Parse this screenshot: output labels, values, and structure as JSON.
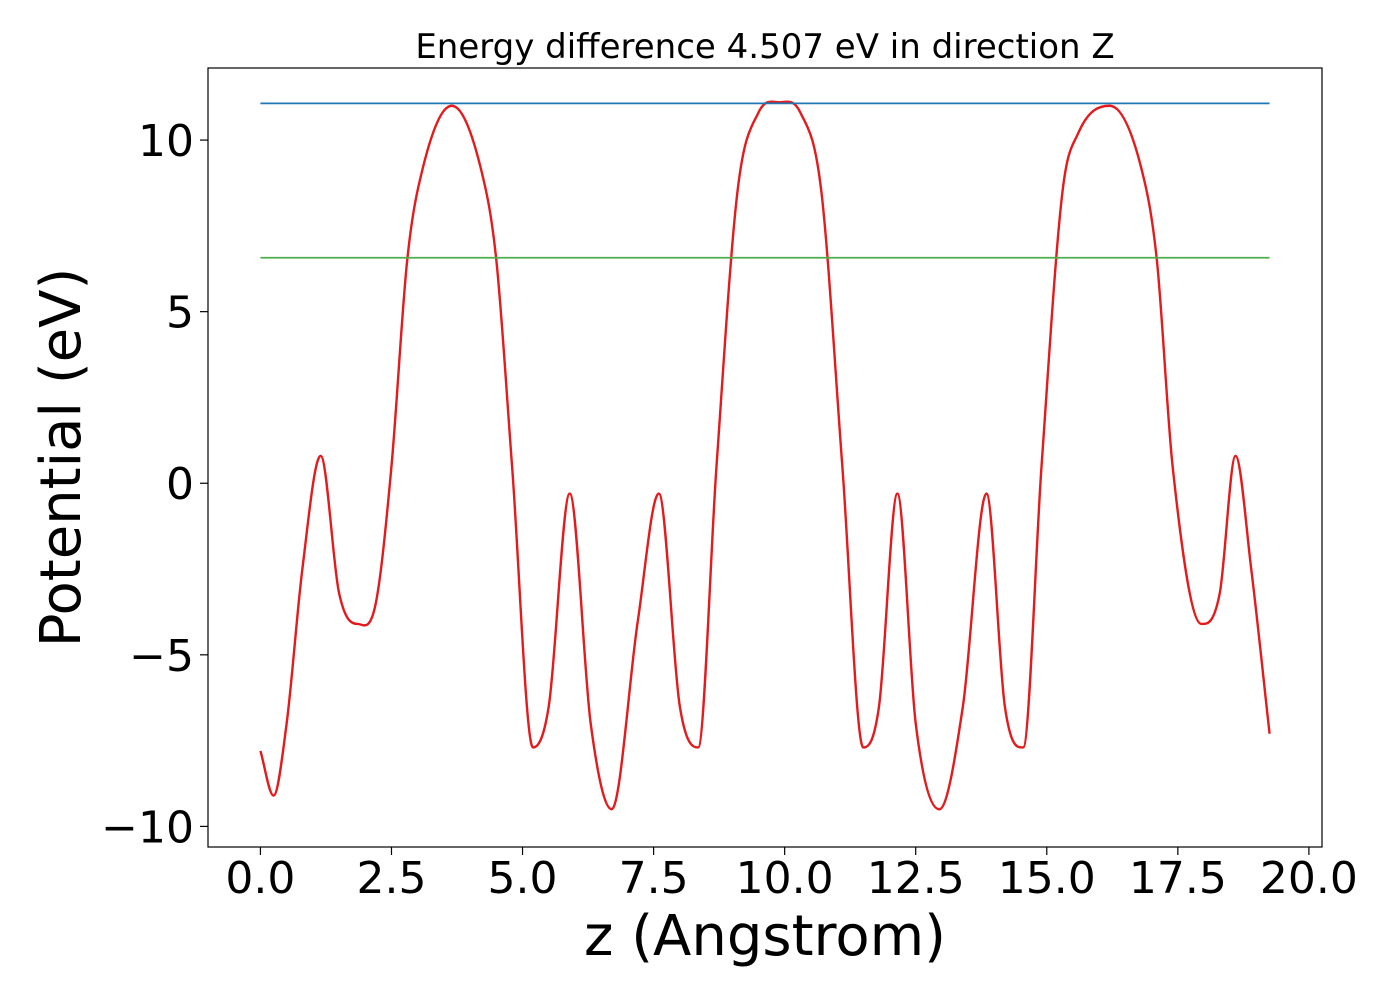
{
  "chart_data": {
    "type": "line",
    "title": "Energy difference 4.507 eV in direction Z",
    "xlabel": "z (Angstrom)",
    "ylabel": "Potential (eV)",
    "xlim": [
      -1.0,
      20.25
    ],
    "ylim": [
      -10.6,
      12.1
    ],
    "xticks": [
      {
        "value": 0.0,
        "label": "0.0"
      },
      {
        "value": 2.5,
        "label": "2.5"
      },
      {
        "value": 5.0,
        "label": "5.0"
      },
      {
        "value": 7.5,
        "label": "7.5"
      },
      {
        "value": 10.0,
        "label": "10.0"
      },
      {
        "value": 12.5,
        "label": "12.5"
      },
      {
        "value": 15.0,
        "label": "15.0"
      },
      {
        "value": 17.5,
        "label": "17.5"
      },
      {
        "value": 20.0,
        "label": "20.0"
      }
    ],
    "yticks": [
      {
        "value": 10,
        "label": "10"
      },
      {
        "value": 5,
        "label": "5"
      },
      {
        "value": 0,
        "label": "0"
      },
      {
        "value": -5,
        "label": "−5"
      },
      {
        "value": -10,
        "label": "−10"
      }
    ],
    "grid": false,
    "series": [
      {
        "color": "#e41a1c",
        "x": [
          0.0,
          0.25,
          0.5,
          0.8,
          1.15,
          1.5,
          1.85,
          2.2,
          2.5,
          2.8,
          3.1,
          3.65,
          4.2,
          4.5,
          4.8,
          5.2,
          5.5,
          5.9,
          6.3,
          6.7,
          7.2,
          7.6,
          8.0,
          8.35,
          8.7,
          9.1,
          9.5,
          9.9,
          10.3,
          10.7,
          11.1,
          11.5,
          11.8,
          12.15,
          12.5,
          12.95,
          13.4,
          13.85,
          14.2,
          14.55,
          14.9,
          15.3,
          15.6,
          16.2,
          16.8,
          17.1,
          17.4,
          17.95,
          18.3,
          18.6,
          18.9,
          19.25
        ],
        "values": [
          -7.8,
          -9.1,
          -7.0,
          -2.5,
          0.8,
          -3.2,
          -4.1,
          -3.5,
          0.5,
          6.5,
          9.2,
          11.0,
          9.2,
          6.5,
          0.5,
          -7.7,
          -6.5,
          -0.3,
          -7.0,
          -9.5,
          -4.0,
          -0.3,
          -6.5,
          -7.7,
          0.5,
          8.5,
          10.8,
          11.1,
          10.8,
          8.5,
          0.5,
          -7.7,
          -6.5,
          -0.3,
          -7.0,
          -9.5,
          -6.5,
          -0.3,
          -6.5,
          -7.7,
          0.5,
          8.5,
          10.2,
          11.0,
          9.2,
          6.5,
          0.5,
          -4.1,
          -3.2,
          0.8,
          -2.5,
          -7.3
        ]
      },
      {
        "color": "#1f77b4",
        "x": [
          0.0,
          19.25
        ],
        "values": [
          11.07,
          11.07
        ]
      },
      {
        "color": "#4daf4a",
        "x": [
          0.0,
          19.25
        ],
        "values": [
          6.57,
          6.57
        ]
      }
    ]
  }
}
